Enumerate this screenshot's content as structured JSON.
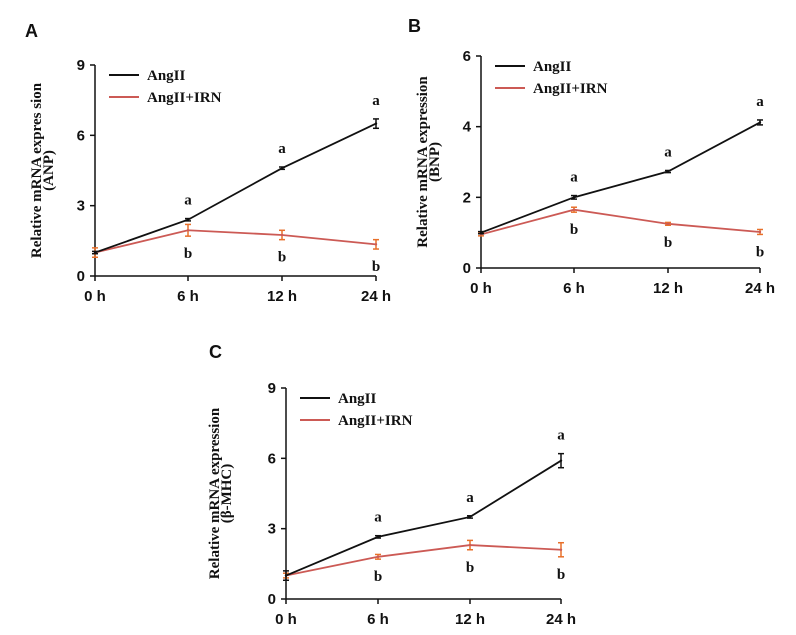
{
  "colors": {
    "AngII": "#111111",
    "AngII+IRN": "#cc5a55",
    "errorbar_irn": "#e8702a",
    "axis": "#111111"
  },
  "chart_data": [
    {
      "panel": "A",
      "type": "line",
      "categories": [
        "0 h",
        "6 h",
        "12 h",
        "24 h"
      ],
      "ylabel": [
        "Relative mRNA expres sion",
        "(ANP)"
      ],
      "ylim": [
        0,
        9
      ],
      "yticks": [
        "0",
        "3",
        "6",
        "9"
      ],
      "ytick_values": [
        0,
        3,
        6,
        9
      ],
      "grid": false,
      "legend": "top-left",
      "series": [
        {
          "name": "AngII",
          "values": [
            1.0,
            2.4,
            4.6,
            6.5
          ],
          "errors": [
            0.05,
            0.05,
            0.05,
            0.2
          ],
          "labels": [
            "",
            "a",
            "a",
            "a"
          ]
        },
        {
          "name": "AngII+IRN",
          "values": [
            1.0,
            1.95,
            1.75,
            1.35
          ],
          "errors": [
            0.2,
            0.25,
            0.2,
            0.2
          ],
          "labels": [
            "",
            "b",
            "b",
            "b"
          ]
        }
      ]
    },
    {
      "panel": "B",
      "type": "line",
      "categories": [
        "0 h",
        "6 h",
        "12 h",
        "24 h"
      ],
      "ylabel": [
        "Relative mRNA expression",
        "(BNP)"
      ],
      "ylim": [
        0,
        6
      ],
      "yticks": [
        "0",
        "2",
        "4",
        "6"
      ],
      "ytick_values": [
        0,
        2,
        4,
        6
      ],
      "grid": false,
      "legend": "top-left",
      "series": [
        {
          "name": "AngII",
          "values": [
            1.0,
            2.0,
            2.73,
            4.12
          ],
          "errors": [
            0.03,
            0.05,
            0.03,
            0.07
          ],
          "labels": [
            "",
            "a",
            "a",
            "a"
          ]
        },
        {
          "name": "AngII+IRN",
          "values": [
            0.95,
            1.65,
            1.25,
            1.02
          ],
          "errors": [
            0.04,
            0.07,
            0.04,
            0.07
          ],
          "labels": [
            "",
            "b",
            "b",
            "b"
          ]
        }
      ]
    },
    {
      "panel": "C",
      "type": "line",
      "categories": [
        "0 h",
        "6 h",
        "12 h",
        "24 h"
      ],
      "ylabel": [
        "Relative mRNA expression",
        "(β-MHC)"
      ],
      "ylim": [
        0,
        9
      ],
      "yticks": [
        "0",
        "3",
        "6",
        "9"
      ],
      "ytick_values": [
        0,
        3,
        6,
        9
      ],
      "grid": false,
      "legend": "top-left",
      "series": [
        {
          "name": "AngII",
          "values": [
            1.0,
            2.65,
            3.5,
            5.9
          ],
          "errors": [
            0.2,
            0.05,
            0.05,
            0.3
          ],
          "labels": [
            "",
            "a",
            "a",
            "a"
          ]
        },
        {
          "name": "AngII+IRN",
          "values": [
            1.0,
            1.8,
            2.3,
            2.1
          ],
          "errors": [
            0.1,
            0.1,
            0.2,
            0.3
          ],
          "labels": [
            "",
            "b",
            "b",
            "b"
          ]
        }
      ]
    }
  ]
}
